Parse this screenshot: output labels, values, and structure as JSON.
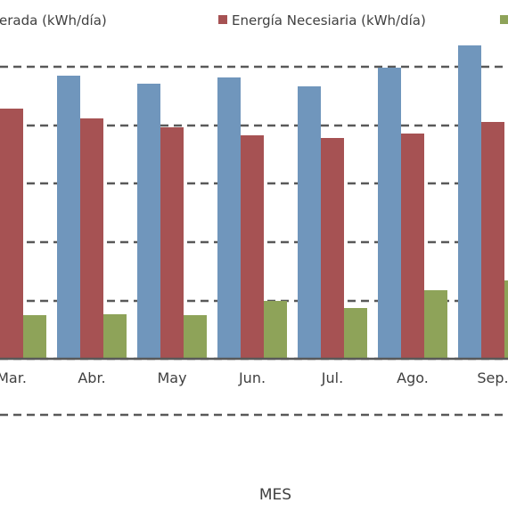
{
  "chart_data": {
    "type": "bar",
    "title": "",
    "xlabel": "MES",
    "ylabel": "",
    "categories": [
      "Mar.",
      "Abr.",
      "May",
      "Jun.",
      "Jul.",
      "Ago.",
      "Sep."
    ],
    "ylim": [
      0,
      360
    ],
    "grid": true,
    "legend_position": "top",
    "series": [
      {
        "name": "Energía Generada (kWh/día)",
        "color": "#7096BC",
        "values": [
          null,
          318,
          309,
          316,
          306,
          327,
          352
        ]
      },
      {
        "name": "Energía Necesiaria (kWh/día)",
        "color": "#A65253",
        "values": [
          281,
          270,
          260,
          251,
          248,
          253,
          266
        ]
      },
      {
        "name": "",
        "color": "#8EA359",
        "values": [
          49,
          50,
          49,
          65,
          57,
          77,
          88
        ]
      }
    ],
    "legend": {
      "visible_entries": [
        "erada (kWh/día)",
        "Energía Necesiaria (kWh/día)",
        ""
      ]
    }
  }
}
